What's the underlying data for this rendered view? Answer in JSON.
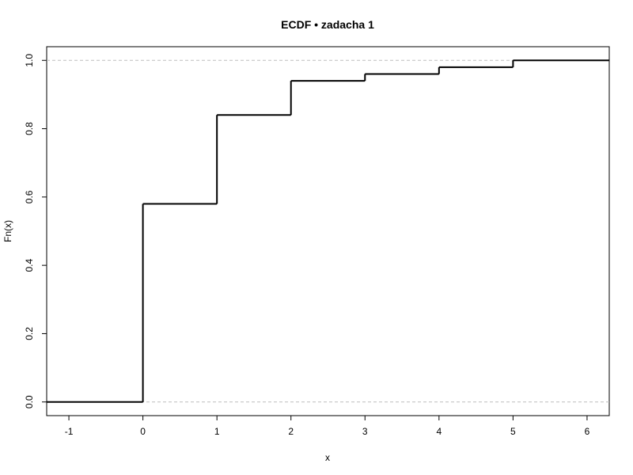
{
  "chart_data": {
    "type": "line",
    "subtype": "step",
    "title": "ECDF • zadacha 1",
    "xlabel": "x",
    "ylabel": "Fn(x)",
    "xlim": [
      -1.3,
      6.3
    ],
    "ylim": [
      -0.04,
      1.04
    ],
    "x_ticks": [
      -1,
      0,
      1,
      2,
      3,
      4,
      5,
      6
    ],
    "y_ticks": [
      0.0,
      0.2,
      0.4,
      0.6,
      0.8,
      1.0
    ],
    "y_tick_labels": [
      "0.0",
      "0.2",
      "0.4",
      "0.6",
      "0.8",
      "1.0"
    ],
    "reference_lines": [
      0,
      1
    ],
    "grid": false,
    "steps": [
      {
        "x": -1.3,
        "y": 0.0
      },
      {
        "x": 0,
        "y": 0.58
      },
      {
        "x": 1,
        "y": 0.84
      },
      {
        "x": 2,
        "y": 0.94
      },
      {
        "x": 3,
        "y": 0.96
      },
      {
        "x": 4,
        "y": 0.98
      },
      {
        "x": 5,
        "y": 1.0
      }
    ],
    "x_end": 6.3,
    "colors": {
      "line": "#000000",
      "reference": "#bdbdbd",
      "frame": "#000000"
    }
  }
}
